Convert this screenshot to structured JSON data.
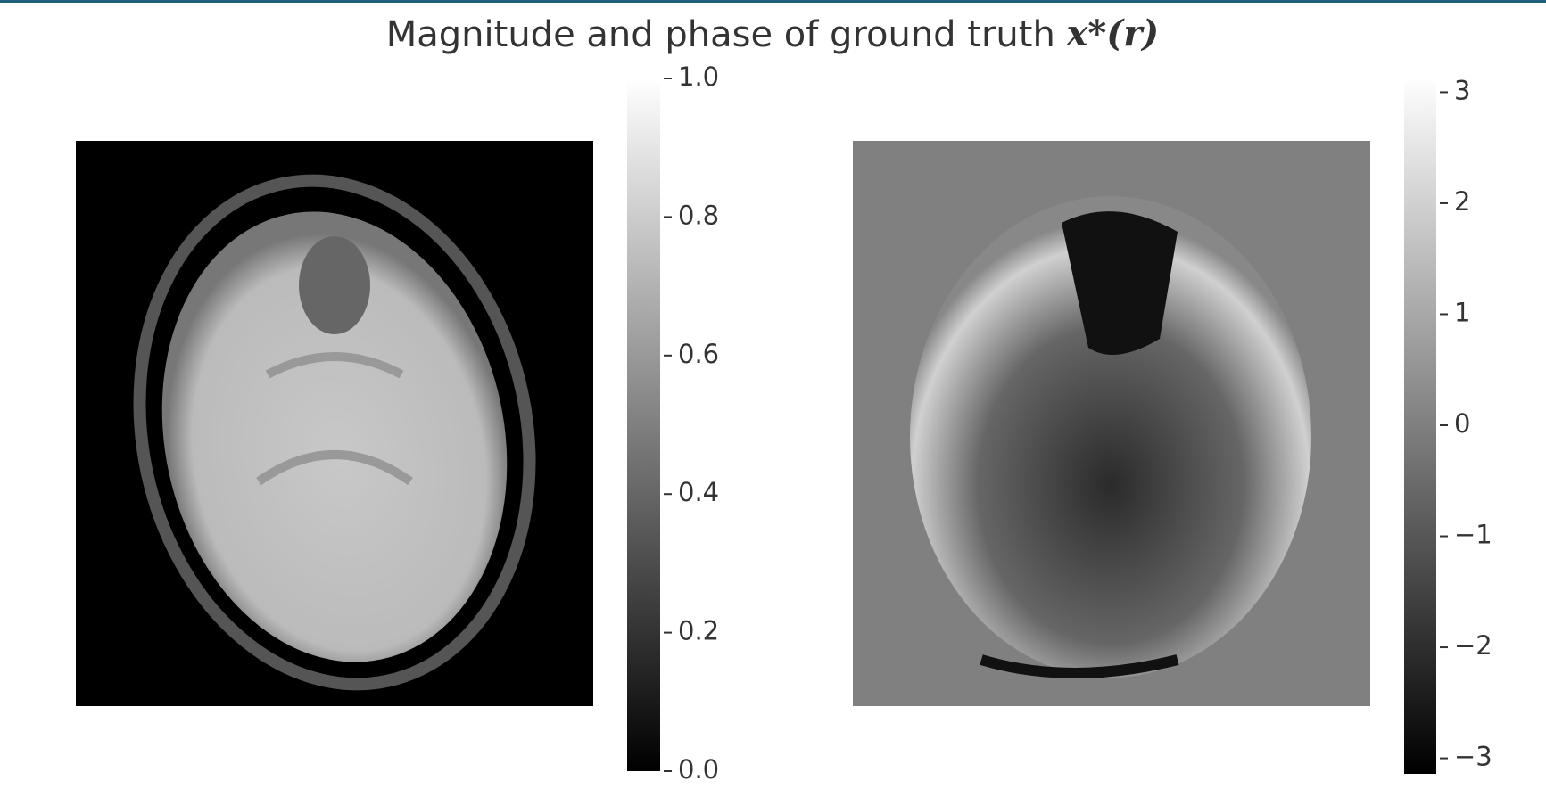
{
  "title": "Magnitude and phase of ground truth",
  "title_math": "x*(r)",
  "chart_data": [
    {
      "type": "image",
      "cmap": "gray",
      "ylim": [
        0,
        1
      ],
      "yticks": [
        {
          "value": 0,
          "label": "0.0"
        },
        {
          "value": 0.2,
          "label": "0.2"
        },
        {
          "value": 0.4,
          "label": "0.4"
        },
        {
          "value": 0.6,
          "label": "0.6"
        },
        {
          "value": 0.8,
          "label": "0.8"
        },
        {
          "value": 1,
          "label": "1.0"
        }
      ]
    },
    {
      "type": "image",
      "cmap": "gray",
      "ylim": [
        -3.14,
        3.14
      ],
      "yticks": [
        {
          "value": -3,
          "label": "−3"
        },
        {
          "value": -2,
          "label": "−2"
        },
        {
          "value": -1,
          "label": "−1"
        },
        0,
        1,
        2,
        3
      ]
    }
  ]
}
